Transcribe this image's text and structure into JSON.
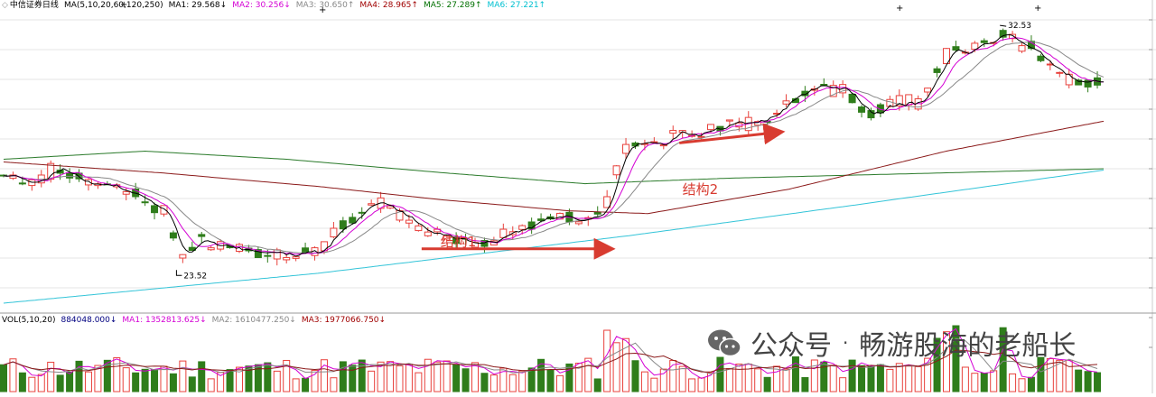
{
  "header": {
    "title": "中信证券日线",
    "ma_params": "MA(5,10,20,60,120,250)",
    "items": [
      {
        "text": "MA1: 29.568↓",
        "color": "#000000"
      },
      {
        "text": "MA2: 30.256↓",
        "color": "#d400d4"
      },
      {
        "text": "MA3: 30.650↑",
        "color": "#888888"
      },
      {
        "text": "MA4: 28.965↑",
        "color": "#a00000"
      },
      {
        "text": "MA5: 27.289↑",
        "color": "#007000"
      },
      {
        "text": "MA6: 27.221↑",
        "color": "#00c0d0"
      }
    ]
  },
  "vol_header": {
    "label": "VOL(5,10,20)",
    "items": [
      {
        "text": "884048.000↓",
        "color": "#000080"
      },
      {
        "text": "MA1: 1352813.625↓",
        "color": "#d400d4"
      },
      {
        "text": "MA2: 1610477.250↓",
        "color": "#888888"
      },
      {
        "text": "MA3: 1977066.750↓",
        "color": "#a00000"
      }
    ]
  },
  "watermark": {
    "brand": "公众号",
    "separator": "·",
    "name": "畅游股海的老船长"
  },
  "colors": {
    "up": "#e8413c",
    "down": "#2f7d1b",
    "grid": "#e6e6e6",
    "arrow": "#d83b30",
    "ma5": "#000000",
    "ma10": "#d400d4",
    "ma20": "#888888",
    "ma60": "#8b1a1a",
    "ma120": "#2a7a2a",
    "ma250": "#33c4d8"
  },
  "chart_data": {
    "type": "candlestick",
    "title": "中信证券日线",
    "annotations": {
      "low_label": "23.52",
      "high_label": "32.53",
      "structure1": "结构1",
      "structure2": "结构2"
    },
    "structure1_range": {
      "start_index": 133,
      "end_index": 193,
      "price": 24.3
    },
    "structure2_range": {
      "start_index": 215,
      "end_index": 247,
      "price": 28.45
    },
    "low_point": {
      "index": 55,
      "price": 23.52
    },
    "high_point": {
      "index": 317,
      "price": 32.53
    },
    "y_range": [
      22.0,
      33.0
    ],
    "price_anchors": [
      [
        0,
        27.0
      ],
      [
        10,
        26.8
      ],
      [
        16,
        27.3
      ],
      [
        26,
        26.8
      ],
      [
        38,
        26.5
      ],
      [
        52,
        25.6
      ],
      [
        55,
        24.0
      ],
      [
        62,
        24.6
      ],
      [
        70,
        24.3
      ],
      [
        85,
        24.2
      ],
      [
        100,
        24.2
      ],
      [
        108,
        25.2
      ],
      [
        118,
        26.2
      ],
      [
        122,
        25.7
      ],
      [
        135,
        25.0
      ],
      [
        145,
        24.5
      ],
      [
        155,
        24.6
      ],
      [
        170,
        25.3
      ],
      [
        190,
        25.5
      ],
      [
        197,
        28.0
      ],
      [
        212,
        28.4
      ],
      [
        240,
        29.0
      ],
      [
        256,
        30.2
      ],
      [
        266,
        30.2
      ],
      [
        276,
        29.3
      ],
      [
        285,
        29.7
      ],
      [
        292,
        29.8
      ],
      [
        300,
        31.5
      ],
      [
        307,
        31.6
      ],
      [
        317,
        32.2
      ],
      [
        330,
        31.4
      ],
      [
        338,
        30.5
      ],
      [
        350,
        30.3
      ]
    ],
    "ma250_anchors": [
      [
        0,
        22.3
      ],
      [
        100,
        23.4
      ],
      [
        200,
        24.8
      ],
      [
        270,
        25.9
      ],
      [
        350,
        27.2
      ]
    ],
    "ma120_anchors": [
      [
        0,
        27.6
      ],
      [
        45,
        27.9
      ],
      [
        90,
        27.6
      ],
      [
        140,
        27.1
      ],
      [
        185,
        26.7
      ],
      [
        230,
        26.9
      ],
      [
        300,
        27.1
      ],
      [
        350,
        27.25
      ]
    ],
    "ma60_anchors": [
      [
        0,
        27.5
      ],
      [
        50,
        27.1
      ],
      [
        100,
        26.6
      ],
      [
        140,
        26.1
      ],
      [
        180,
        25.7
      ],
      [
        205,
        25.6
      ],
      [
        250,
        26.5
      ],
      [
        300,
        27.9
      ],
      [
        350,
        29.0
      ]
    ]
  }
}
